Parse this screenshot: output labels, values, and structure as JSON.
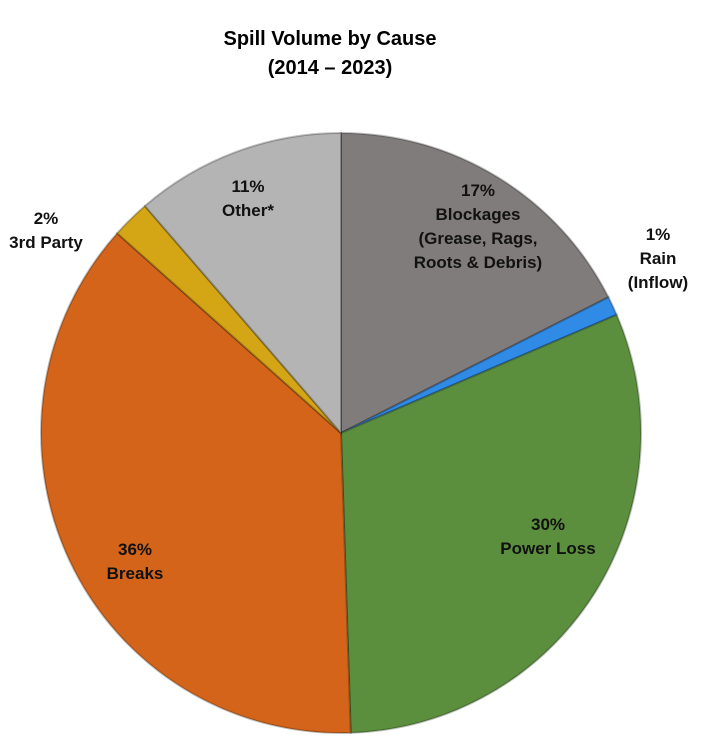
{
  "chart_data": {
    "type": "pie",
    "title": "Spill Volume by Cause",
    "subtitle": "(2014 – 2023)",
    "slices": [
      {
        "name": "Blockages (Grease, Rags, Roots & Debris)",
        "value": 17,
        "label_lines": [
          "17%",
          "Blockages",
          "(Grease, Rags,",
          "Roots & Debris)"
        ],
        "color": "#807c7b"
      },
      {
        "name": "Rain (Inflow)",
        "value": 1,
        "label_lines": [
          "1%",
          "Rain",
          "(Inflow)"
        ],
        "color": "#2f8be6"
      },
      {
        "name": "Power Loss",
        "value": 30,
        "label_lines": [
          "30%",
          "Power Loss"
        ],
        "color": "#5b8f3d"
      },
      {
        "name": "Breaks",
        "value": 36,
        "label_lines": [
          "36%",
          "Breaks"
        ],
        "color": "#d3641a"
      },
      {
        "name": "3rd Party",
        "value": 2,
        "label_lines": [
          "2%",
          "3rd Party"
        ],
        "color": "#d4a514"
      },
      {
        "name": "Other*",
        "value": 11,
        "label_lines": [
          "11%",
          "Other*"
        ],
        "color": "#b4b4b4"
      }
    ],
    "start_angle": "top",
    "direction": "clockwise"
  }
}
